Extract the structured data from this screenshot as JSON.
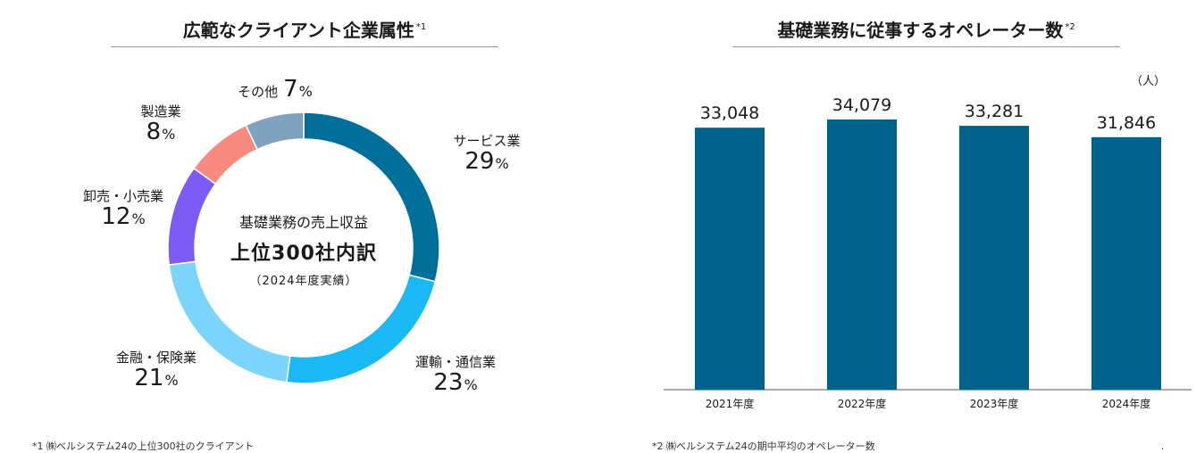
{
  "left_panel": {
    "title": "広範なクライアント企業属性",
    "title_note": "*1",
    "center": {
      "line1": "基礎業務の売上収益",
      "line2": "上位300社内訳",
      "line3": "（2024年度実績）"
    },
    "footnote": "*1 ㈱ベルシステム24の上位300社のクライアント"
  },
  "right_panel": {
    "title": "基礎業務に従事するオペレーター数",
    "title_note": "*2",
    "unit": "（人）",
    "footnote": "*2 ㈱ベルシステム24の期中平均のオペレーター数"
  },
  "percent_sign": "%",
  "chart_data": [
    {
      "type": "pie",
      "donut": true,
      "categories": [
        "サービス業",
        "運輸・通信業",
        "金融・保険業",
        "卸売・小売業",
        "製造業",
        "その他"
      ],
      "values": [
        29,
        23,
        21,
        12,
        8,
        7
      ],
      "colors": [
        "#006f9a",
        "#1ab9f5",
        "#7ad4fb",
        "#7c5cf5",
        "#f88a80",
        "#7fa3bf"
      ]
    },
    {
      "type": "bar",
      "categories": [
        "2021年度",
        "2022年度",
        "2023年度",
        "2024年度"
      ],
      "values": [
        33048,
        34079,
        33281,
        31846
      ],
      "value_labels": [
        "33,048",
        "34,079",
        "33,281",
        "31,846"
      ],
      "color": "#00628a",
      "ylim": [
        0,
        34079
      ]
    }
  ]
}
